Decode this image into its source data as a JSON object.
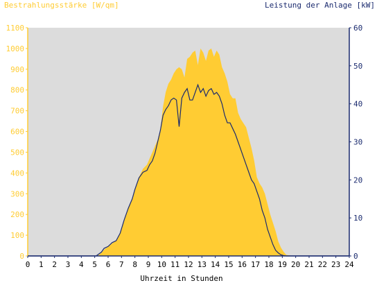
{
  "chart_data": {
    "type": "area",
    "title_left": "Bestrahlungsstärke [W/qm]",
    "title_right": "Leistung der Anlage [kW]",
    "xlabel": "Uhrzeit in Stunden",
    "xlim": [
      0,
      24
    ],
    "x_ticks": [
      "0",
      "1",
      "2",
      "3",
      "4",
      "5",
      "6",
      "7",
      "8",
      "9",
      "10",
      "11",
      "12",
      "13",
      "14",
      "15",
      "16",
      "17",
      "18",
      "19",
      "20",
      "21",
      "22",
      "23",
      "24"
    ],
    "y_left": {
      "lim": [
        0,
        1100
      ],
      "ticks": [
        "0",
        "100",
        "200",
        "300",
        "400",
        "500",
        "600",
        "700",
        "800",
        "900",
        "1000",
        "1100"
      ]
    },
    "y_right": {
      "lim": [
        0,
        60
      ],
      "ticks": [
        "0",
        "10",
        "20",
        "30",
        "40",
        "50",
        "60"
      ]
    },
    "colors": {
      "plot_bg": "#dcdcdc",
      "irradiance": "#ffcc33",
      "power": "#1a2a6e"
    },
    "series": [
      {
        "name": "Bestrahlungsstärke [W/qm]",
        "axis": "left",
        "x": [
          0,
          5.1,
          5.3,
          5.5,
          5.7,
          6,
          6.3,
          6.6,
          6.9,
          7.2,
          7.5,
          7.8,
          8,
          8.3,
          8.6,
          8.9,
          9.1,
          9.3,
          9.5,
          9.7,
          9.9,
          10.1,
          10.3,
          10.5,
          10.7,
          10.9,
          11.1,
          11.3,
          11.5,
          11.7,
          11.9,
          12.1,
          12.3,
          12.5,
          12.7,
          12.9,
          13.1,
          13.3,
          13.5,
          13.7,
          13.9,
          14.1,
          14.3,
          14.5,
          14.7,
          14.9,
          15.1,
          15.3,
          15.5,
          15.7,
          15.9,
          16.1,
          16.3,
          16.5,
          16.7,
          16.9,
          17.1,
          17.3,
          17.5,
          17.7,
          17.9,
          18.1,
          18.3,
          18.5,
          18.7,
          18.9,
          19.1,
          19.3,
          19.6,
          20,
          24
        ],
        "values": [
          0,
          0,
          5,
          15,
          30,
          45,
          60,
          75,
          110,
          170,
          230,
          270,
          320,
          380,
          420,
          440,
          470,
          500,
          530,
          560,
          610,
          720,
          790,
          830,
          850,
          880,
          900,
          910,
          900,
          860,
          950,
          960,
          980,
          990,
          920,
          1000,
          980,
          940,
          990,
          1000,
          960,
          990,
          970,
          910,
          880,
          840,
          780,
          760,
          760,
          690,
          660,
          640,
          620,
          570,
          520,
          460,
          380,
          350,
          330,
          300,
          250,
          200,
          160,
          120,
          70,
          40,
          20,
          5,
          2,
          0,
          0
        ]
      },
      {
        "name": "Leistung der Anlage [kW]",
        "axis": "right",
        "x": [
          0,
          5.1,
          5.3,
          5.5,
          5.7,
          6,
          6.3,
          6.6,
          6.9,
          7.2,
          7.5,
          7.8,
          8,
          8.3,
          8.6,
          8.9,
          9.1,
          9.3,
          9.5,
          9.7,
          9.9,
          10.1,
          10.3,
          10.5,
          10.7,
          10.9,
          11.1,
          11.3,
          11.5,
          11.7,
          11.9,
          12.1,
          12.3,
          12.5,
          12.7,
          12.9,
          13.1,
          13.3,
          13.5,
          13.7,
          13.9,
          14.1,
          14.3,
          14.5,
          14.7,
          14.9,
          15.1,
          15.3,
          15.5,
          15.7,
          15.9,
          16.1,
          16.3,
          16.5,
          16.7,
          16.9,
          17.1,
          17.3,
          17.5,
          17.7,
          17.9,
          18.1,
          18.3,
          18.5,
          18.7,
          18.9,
          19.1,
          19.3,
          19.6,
          20,
          24
        ],
        "values": [
          0,
          0,
          0.5,
          1,
          2,
          2.5,
          3.5,
          4,
          6,
          9.5,
          12.5,
          15,
          17.5,
          20.5,
          22,
          22.5,
          24,
          25,
          27,
          30,
          33,
          37,
          38.5,
          39.5,
          41,
          41.5,
          41,
          34,
          41.5,
          43,
          44,
          41,
          41,
          43,
          45,
          43,
          44,
          42,
          43.5,
          44,
          42.5,
          43,
          42,
          40,
          37,
          35,
          35,
          33.5,
          32,
          30,
          28,
          26,
          24,
          22,
          20,
          19,
          17,
          15,
          12,
          10,
          7,
          5,
          3,
          1.5,
          0.8,
          0.3,
          0.1,
          0,
          0,
          0,
          0
        ]
      }
    ]
  }
}
